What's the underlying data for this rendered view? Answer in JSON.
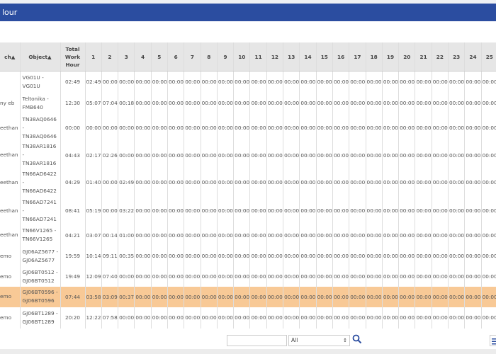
{
  "title": "lour",
  "table": {
    "headers": {
      "branch": "ch▲",
      "object": "Object▲",
      "total": "Total Work Hour",
      "days": [
        "1",
        "2",
        "3",
        "4",
        "5",
        "6",
        "7",
        "8",
        "9",
        "10",
        "11",
        "12",
        "13",
        "14",
        "15",
        "16",
        "17",
        "18",
        "19",
        "20",
        "21",
        "22",
        "23",
        "24",
        "25"
      ]
    },
    "rows": [
      {
        "branch": "",
        "object": "VG01U - VG01U",
        "total": "02:49",
        "days": [
          "02:49",
          "00:00",
          "00:00",
          "00:00",
          "00:00",
          "00:00",
          "00:00",
          "00:00",
          "00:00",
          "00:00",
          "00:00",
          "00:00",
          "00:00",
          "00:00",
          "00:00",
          "00:00",
          "00:00",
          "00:00",
          "00:00",
          "00:00",
          "00:00",
          "00:00",
          "00:00",
          "00:00",
          "00:00"
        ]
      },
      {
        "branch": "ny eb",
        "object": "Teltonika - FMB640",
        "total": "12:30",
        "days": [
          "05:07",
          "07:04",
          "00:18",
          "00:00",
          "00:00",
          "00:00",
          "00:00",
          "00:00",
          "00:00",
          "00:00",
          "00:00",
          "00:00",
          "00:00",
          "00:00",
          "00:00",
          "00:00",
          "00:00",
          "00:00",
          "00:00",
          "00:00",
          "00:00",
          "00:00",
          "00:00",
          "00:00",
          "00:00"
        ]
      },
      {
        "branch": "eethan",
        "object": "TN38AQ0646 - TN38AQ0646",
        "total": "00:00",
        "days": [
          "00:00",
          "00:00",
          "00:00",
          "00:00",
          "00:00",
          "00:00",
          "00:00",
          "00:00",
          "00:00",
          "00:00",
          "00:00",
          "00:00",
          "00:00",
          "00:00",
          "00:00",
          "00:00",
          "00:00",
          "00:00",
          "00:00",
          "00:00",
          "00:00",
          "00:00",
          "00:00",
          "00:00",
          "00:00"
        ]
      },
      {
        "branch": "eethan",
        "object": "TN38AR1816 - TN38AR1816",
        "total": "04:43",
        "days": [
          "02:17",
          "02:26",
          "00:00",
          "00:00",
          "00:00",
          "00:00",
          "00:00",
          "00:00",
          "00:00",
          "00:00",
          "00:00",
          "00:00",
          "00:00",
          "00:00",
          "00:00",
          "00:00",
          "00:00",
          "00:00",
          "00:00",
          "00:00",
          "00:00",
          "00:00",
          "00:00",
          "00:00",
          "00:00"
        ]
      },
      {
        "branch": "eethan",
        "object": "TN66AD6422 - TN66AD6422",
        "total": "04:29",
        "days": [
          "01:40",
          "00:00",
          "02:49",
          "00:00",
          "00:00",
          "00:00",
          "00:00",
          "00:00",
          "00:00",
          "00:00",
          "00:00",
          "00:00",
          "00:00",
          "00:00",
          "00:00",
          "00:00",
          "00:00",
          "00:00",
          "00:00",
          "00:00",
          "00:00",
          "00:00",
          "00:00",
          "00:00",
          "00:00"
        ]
      },
      {
        "branch": "eethan",
        "object": "TN66AD7241 - TN66AD7241",
        "total": "08:41",
        "days": [
          "05:19",
          "00:00",
          "03:22",
          "00:00",
          "00:00",
          "00:00",
          "00:00",
          "00:00",
          "00:00",
          "00:00",
          "00:00",
          "00:00",
          "00:00",
          "00:00",
          "00:00",
          "00:00",
          "00:00",
          "00:00",
          "00:00",
          "00:00",
          "00:00",
          "00:00",
          "00:00",
          "00:00",
          "00:00"
        ]
      },
      {
        "branch": "eethan",
        "object": "TN66V1265 - TN66V1265",
        "total": "04:21",
        "days": [
          "03:07",
          "00:14",
          "01:00",
          "00:00",
          "00:00",
          "00:00",
          "00:00",
          "00:00",
          "00:00",
          "00:00",
          "00:00",
          "00:00",
          "00:00",
          "00:00",
          "00:00",
          "00:00",
          "00:00",
          "00:00",
          "00:00",
          "00:00",
          "00:00",
          "00:00",
          "00:00",
          "00:00",
          "00:00"
        ]
      },
      {
        "branch": "emo",
        "object": "GJ06AZ5677 - GJ06AZ5677",
        "total": "19:59",
        "days": [
          "10:14",
          "09:11",
          "00:35",
          "00:00",
          "00:00",
          "00:00",
          "00:00",
          "00:00",
          "00:00",
          "00:00",
          "00:00",
          "00:00",
          "00:00",
          "00:00",
          "00:00",
          "00:00",
          "00:00",
          "00:00",
          "00:00",
          "00:00",
          "00:00",
          "00:00",
          "00:00",
          "00:00",
          "00:00"
        ]
      },
      {
        "branch": "emo",
        "object": "GJ06BT0512 - GJ06BT0512",
        "total": "19:49",
        "days": [
          "12:09",
          "07:40",
          "00:00",
          "00:00",
          "00:00",
          "00:00",
          "00:00",
          "00:00",
          "00:00",
          "00:00",
          "00:00",
          "00:00",
          "00:00",
          "00:00",
          "00:00",
          "00:00",
          "00:00",
          "00:00",
          "00:00",
          "00:00",
          "00:00",
          "00:00",
          "00:00",
          "00:00",
          "00:00"
        ]
      },
      {
        "branch": "emo",
        "object": "GJ06BT0596 - GJ06BT0596",
        "total": "07:44",
        "highlighted": true,
        "days": [
          "03:58",
          "03:09",
          "00:37",
          "00:00",
          "00:00",
          "00:00",
          "00:00",
          "00:00",
          "00:00",
          "00:00",
          "00:00",
          "00:00",
          "00:00",
          "00:00",
          "00:00",
          "00:00",
          "00:00",
          "00:00",
          "00:00",
          "00:00",
          "00:00",
          "00:00",
          "00:00",
          "00:00",
          "00:00"
        ]
      },
      {
        "branch": "emo",
        "object": "GJ06BT1289 - GJ06BT1289",
        "total": "20:20",
        "days": [
          "12:22",
          "07:58",
          "00:00",
          "00:00",
          "00:00",
          "00:00",
          "00:00",
          "00:00",
          "00:00",
          "00:00",
          "00:00",
          "00:00",
          "00:00",
          "00:00",
          "00:00",
          "00:00",
          "00:00",
          "00:00",
          "00:00",
          "00:00",
          "00:00",
          "00:00",
          "00:00",
          "00:00",
          "00:00"
        ]
      }
    ]
  },
  "pager": {
    "search_value": "",
    "filter_selected": "All"
  },
  "colors": {
    "titlebar": "#2b4da0",
    "highlight_row": "#f8c996",
    "header_bg": "#e6e6e6"
  },
  "icons": {
    "search": "search-icon",
    "menu": "list-menu-icon"
  }
}
